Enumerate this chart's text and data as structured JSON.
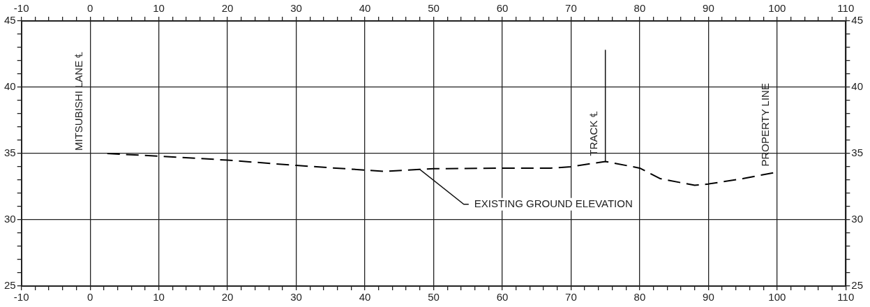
{
  "chart_data": {
    "type": "line",
    "x": [
      2.5,
      10,
      20,
      30,
      40,
      43,
      48,
      50,
      60,
      67,
      70,
      75,
      80,
      83,
      88,
      90,
      95,
      100
    ],
    "series": [
      {
        "color": "#000000",
        "values": [
          35.0,
          34.8,
          34.5,
          34.1,
          33.75,
          33.65,
          33.8,
          33.85,
          33.9,
          33.9,
          34.0,
          34.4,
          33.9,
          33.1,
          32.6,
          32.7,
          33.1,
          33.6
        ]
      }
    ],
    "xlim": [
      -10,
      110
    ],
    "xticks": [
      -10,
      {
        "value": -8,
        "label": null
      },
      {
        "value": -6,
        "label": null
      },
      {
        "value": -4,
        "label": null
      },
      {
        "value": -2,
        "label": null
      },
      0,
      {
        "value": 2,
        "label": null
      },
      {
        "value": 4,
        "label": null
      },
      {
        "value": 6,
        "label": null
      },
      {
        "value": 8,
        "label": null
      },
      10,
      {
        "value": 12,
        "label": null
      },
      {
        "value": 14,
        "label": null
      },
      {
        "value": 16,
        "label": null
      },
      {
        "value": 18,
        "label": null
      },
      20,
      {
        "value": 22,
        "label": null
      },
      {
        "value": 24,
        "label": null
      },
      {
        "value": 26,
        "label": null
      },
      {
        "value": 28,
        "label": null
      },
      30,
      {
        "value": 32,
        "label": null
      },
      {
        "value": 34,
        "label": null
      },
      {
        "value": 36,
        "label": null
      },
      {
        "value": 38,
        "label": null
      },
      40,
      {
        "value": 42,
        "label": null
      },
      {
        "value": 44,
        "label": null
      },
      {
        "value": 46,
        "label": null
      },
      {
        "value": 48,
        "label": null
      },
      50,
      {
        "value": 52,
        "label": null
      },
      {
        "value": 54,
        "label": null
      },
      {
        "value": 56,
        "label": null
      },
      {
        "value": 58,
        "label": null
      },
      60,
      {
        "value": 62,
        "label": null
      },
      {
        "value": 64,
        "label": null
      },
      {
        "value": 66,
        "label": null
      },
      {
        "value": 68,
        "label": null
      },
      70,
      {
        "value": 72,
        "label": null
      },
      {
        "value": 74,
        "label": null
      },
      {
        "value": 76,
        "label": null
      },
      {
        "value": 78,
        "label": null
      },
      80,
      {
        "value": 82,
        "label": null
      },
      {
        "value": 84,
        "label": null
      },
      {
        "value": 86,
        "label": null
      },
      {
        "value": 88,
        "label": null
      },
      90,
      {
        "value": 92,
        "label": null
      },
      {
        "value": 94,
        "label": null
      },
      {
        "value": 96,
        "label": null
      },
      {
        "value": 98,
        "label": null
      },
      100,
      {
        "value": 102,
        "label": null
      },
      {
        "value": 104,
        "label": null
      },
      {
        "value": 106,
        "label": null
      },
      {
        "value": 108,
        "label": null
      },
      110
    ],
    "x2lim": [
      -10,
      110
    ],
    "x2ticks": [
      -10,
      {
        "value": -8,
        "label": null
      },
      {
        "value": -6,
        "label": null
      },
      {
        "value": -4,
        "label": null
      },
      {
        "value": -2,
        "label": null
      },
      0,
      {
        "value": 2,
        "label": null
      },
      {
        "value": 4,
        "label": null
      },
      {
        "value": 6,
        "label": null
      },
      {
        "value": 8,
        "label": null
      },
      10,
      {
        "value": 12,
        "label": null
      },
      {
        "value": 14,
        "label": null
      },
      {
        "value": 16,
        "label": null
      },
      {
        "value": 18,
        "label": null
      },
      20,
      {
        "value": 22,
        "label": null
      },
      {
        "value": 24,
        "label": null
      },
      {
        "value": 26,
        "label": null
      },
      {
        "value": 28,
        "label": null
      },
      30,
      {
        "value": 32,
        "label": null
      },
      {
        "value": 34,
        "label": null
      },
      {
        "value": 36,
        "label": null
      },
      {
        "value": 38,
        "label": null
      },
      40,
      {
        "value": 42,
        "label": null
      },
      {
        "value": 44,
        "label": null
      },
      {
        "value": 46,
        "label": null
      },
      {
        "value": 48,
        "label": null
      },
      50,
      {
        "value": 52,
        "label": null
      },
      {
        "value": 54,
        "label": null
      },
      {
        "value": 56,
        "label": null
      },
      {
        "value": 58,
        "label": null
      },
      60,
      {
        "value": 62,
        "label": null
      },
      {
        "value": 64,
        "label": null
      },
      {
        "value": 66,
        "label": null
      },
      {
        "value": 68,
        "label": null
      },
      70,
      {
        "value": 72,
        "label": null
      },
      {
        "value": 74,
        "label": null
      },
      {
        "value": 76,
        "label": null
      },
      {
        "value": 78,
        "label": null
      },
      80,
      {
        "value": 82,
        "label": null
      },
      {
        "value": 84,
        "label": null
      },
      {
        "value": 86,
        "label": null
      },
      {
        "value": 88,
        "label": null
      },
      90,
      {
        "value": 92,
        "label": null
      },
      {
        "value": 94,
        "label": null
      },
      {
        "value": 96,
        "label": null
      },
      {
        "value": 98,
        "label": null
      },
      100,
      {
        "value": 102,
        "label": null
      },
      {
        "value": 104,
        "label": null
      },
      {
        "value": 106,
        "label": null
      },
      {
        "value": 108,
        "label": null
      },
      110
    ],
    "ylim": [
      25,
      45
    ],
    "yticks": [
      25,
      {
        "value": 26,
        "label": null
      },
      {
        "value": 27,
        "label": null
      },
      {
        "value": 28,
        "label": null
      },
      {
        "value": 29,
        "label": null
      },
      30,
      {
        "value": 31,
        "label": null
      },
      {
        "value": 32,
        "label": null
      },
      {
        "value": 33,
        "label": null
      },
      {
        "value": 34,
        "label": null
      },
      35,
      {
        "value": 36,
        "label": null
      },
      {
        "value": 37,
        "label": null
      },
      {
        "value": 38,
        "label": null
      },
      {
        "value": 39,
        "label": null
      },
      40,
      {
        "value": 41,
        "label": null
      },
      {
        "value": 42,
        "label": null
      },
      {
        "value": 43,
        "label": null
      },
      {
        "value": 44,
        "label": null
      },
      45
    ],
    "y2lim": [
      25,
      45
    ],
    "y2ticks": [
      25,
      {
        "value": 26,
        "label": null
      },
      {
        "value": 27,
        "label": null
      },
      {
        "value": 28,
        "label": null
      },
      {
        "value": 29,
        "label": null
      },
      30,
      {
        "value": 31,
        "label": null
      },
      {
        "value": 32,
        "label": null
      },
      {
        "value": 33,
        "label": null
      },
      {
        "value": 34,
        "label": null
      },
      35,
      {
        "value": 36,
        "label": null
      },
      {
        "value": 37,
        "label": null
      },
      {
        "value": 38,
        "label": null
      },
      {
        "value": 39,
        "label": null
      },
      40,
      {
        "value": 41,
        "label": null
      },
      {
        "value": 42,
        "label": null
      },
      {
        "value": 43,
        "label": null
      },
      {
        "value": 44,
        "label": null
      },
      45
    ],
    "annotations": [
      "MITSUBISHI LANE ℄",
      {
        "text": "TRACK ℄",
        "x": 75,
        "y": 34.4
      },
      {
        "text": "PROPERTY LINE",
        "x": 100,
        "y": 33.6
      },
      {
        "text": "EXISTING GROUND ELEVATION",
        "x": 48,
        "y": 33.8
      }
    ],
    "grid": true,
    "legend": false,
    "marker": "none",
    "line_style": "dashed"
  }
}
